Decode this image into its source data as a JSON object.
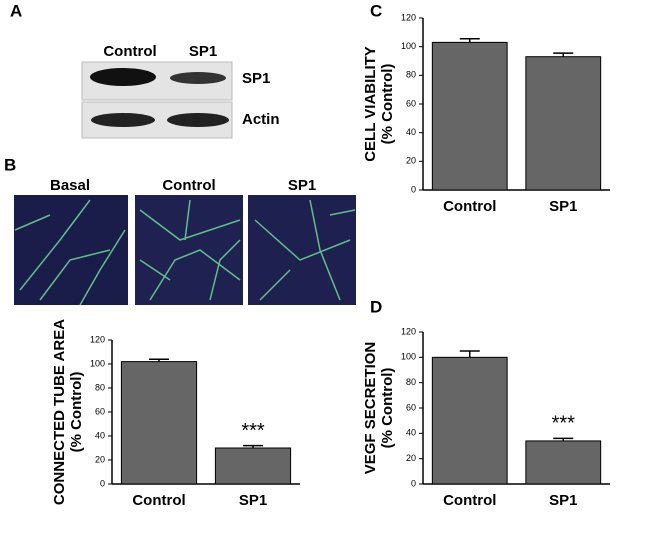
{
  "panel_labels": [
    "A",
    "B",
    "C",
    "D"
  ],
  "blot": {
    "lanes": [
      "Control",
      "SP1"
    ],
    "bands": [
      "SP1",
      "Actin"
    ]
  },
  "images": {
    "labels": [
      "Basal",
      "Control",
      "SP1"
    ]
  },
  "chart_data": [
    {
      "type": "bar",
      "y_label": [
        "CONNECTED TUBE AREA",
        "(% Control)"
      ],
      "categories": [
        "Control",
        "SP1"
      ],
      "values": [
        102,
        30
      ],
      "errors": [
        2,
        2
      ],
      "significance": [
        null,
        "***"
      ],
      "color": "#666666",
      "ylim": [
        0,
        120
      ],
      "yticks": [
        0,
        20,
        40,
        60,
        80,
        100,
        120
      ]
    },
    {
      "type": "bar",
      "y_label": [
        "CELL VIABILITY",
        "(% Control)"
      ],
      "categories": [
        "Control",
        "SP1"
      ],
      "values": [
        103,
        93
      ],
      "errors": [
        2.5,
        2.5
      ],
      "significance": [
        null,
        null
      ],
      "color": "#666666",
      "ylim": [
        0,
        120
      ],
      "yticks": [
        0,
        20,
        40,
        60,
        80,
        100,
        120
      ]
    },
    {
      "type": "bar",
      "y_label": [
        "VEGF SECRETION",
        "(% Control)"
      ],
      "categories": [
        "Control",
        "SP1"
      ],
      "values": [
        100,
        34
      ],
      "errors": [
        5,
        2
      ],
      "significance": [
        null,
        "***"
      ],
      "color": "#666666",
      "ylim": [
        0,
        120
      ],
      "yticks": [
        0,
        20,
        40,
        60,
        80,
        100,
        120
      ]
    }
  ]
}
